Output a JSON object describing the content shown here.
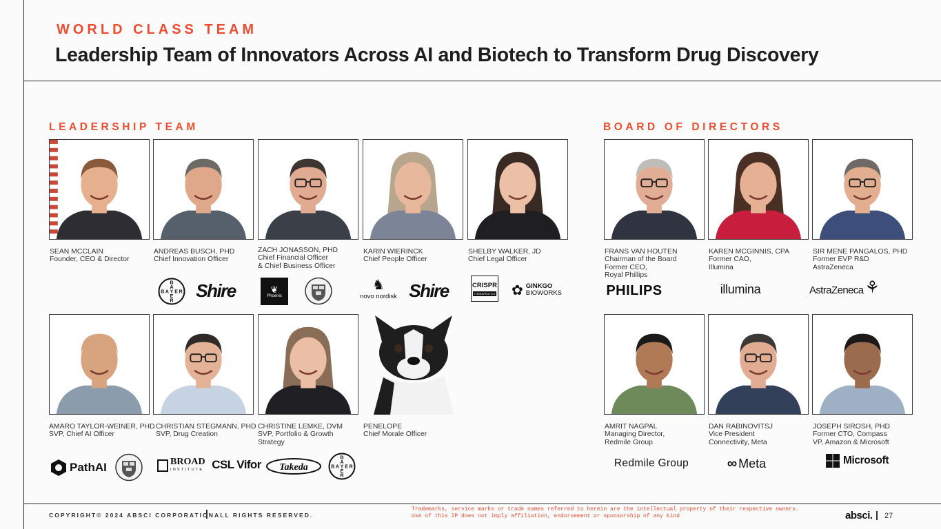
{
  "header": {
    "eyebrow": "WORLD CLASS TEAM",
    "title": "Leadership Team of Innovators Across AI and Biotech to Transform Drug Discovery"
  },
  "sections": {
    "leadership": "LEADERSHIP TEAM",
    "board": "BOARD OF DIRECTORS"
  },
  "leadership": [
    {
      "name": "SEAN MCCLAIN",
      "lines": [
        "Founder, CEO & Director"
      ]
    },
    {
      "name": "ANDREAS BUSCH, PHD",
      "lines": [
        "Chief Innovation Officer"
      ]
    },
    {
      "name": "ZACH JONASSON, PHD",
      "lines": [
        "Chief Financial Officer",
        "& Chief Business Officer"
      ]
    },
    {
      "name": "KARIN WIERINCK",
      "lines": [
        "Chief People Officer"
      ]
    },
    {
      "name": "SHELBY WALKER, JD",
      "lines": [
        "Chief Legal Officer"
      ]
    },
    {
      "name": "AMARO TAYLOR-WEINER, PHD",
      "lines": [
        "SVP, Chief AI Officer"
      ]
    },
    {
      "name": "CHRISTIAN STEGMANN, PHD",
      "lines": [
        "SVP,  Drug Creation"
      ]
    },
    {
      "name": "CHRISTINE LEMKE, DVM",
      "lines": [
        "SVP, Portfolio & Growth",
        "Strategy"
      ]
    },
    {
      "name": "PENELOPE",
      "lines": [
        "Chief Morale Officer"
      ]
    }
  ],
  "board": [
    {
      "name": "FRANS VAN HOUTEN",
      "lines": [
        "Chairman of the Board",
        "Former CEO,",
        "Royal Phillips"
      ]
    },
    {
      "name": "KAREN MCGINNIS, CPA",
      "lines": [
        "Former CAO,",
        "Illumina"
      ]
    },
    {
      "name": "SIR MENE PANGALOS, PHD",
      "lines": [
        "Former EVP R&D",
        "AstraZeneca"
      ]
    },
    {
      "name": "AMRIT NAGPAL",
      "lines": [
        "Managing Director,",
        "Redmile Group"
      ]
    },
    {
      "name": "DAN RABINOVITSJ",
      "lines": [
        "Vice President",
        "Connectivity, Meta"
      ]
    },
    {
      "name": "JOSEPH SIROSH, PHD",
      "lines": [
        "Former CTO, Compass",
        "VP, Amazon & Microsoft"
      ]
    }
  ],
  "logos": {
    "bayer": [
      "B",
      "A",
      "Y",
      "E",
      "R"
    ],
    "shire": "Shire",
    "phoenix": "Phoenix",
    "novo": "novo nordisk",
    "crispr": "CRISPR",
    "crispr_sub": "THERAPEUTICS",
    "ginkgo_1": "GINKGO",
    "ginkgo_2": "BIOWORKS",
    "philips": "PHILIPS",
    "illumina": "illumina",
    "astrazeneca": "AstraZeneca",
    "pathai": "PathAI",
    "broad_1": "BROAD",
    "broad_2": "INSTITUTE",
    "csl": "CSL Vifor",
    "takeda": "Takeda",
    "redmile": "Redmile Group",
    "meta": "Meta",
    "microsoft": "Microsoft"
  },
  "footer": {
    "copyright": "COPYRIGHT© 2024 ABSCI CORPORATION.",
    "rights": "ALL RIGHTS RESERVED.",
    "legal_1": "Trademarks, service marks or trade names referred to herein are the intellectual property of their respective owners.",
    "legal_2": "Use of this IP does not imply affiliation, endorsement or sponsorship of any kind",
    "brand": "absci.",
    "page": "27"
  },
  "colors": {
    "accent": "#ee4c2f",
    "text": "#1f1d1e"
  }
}
